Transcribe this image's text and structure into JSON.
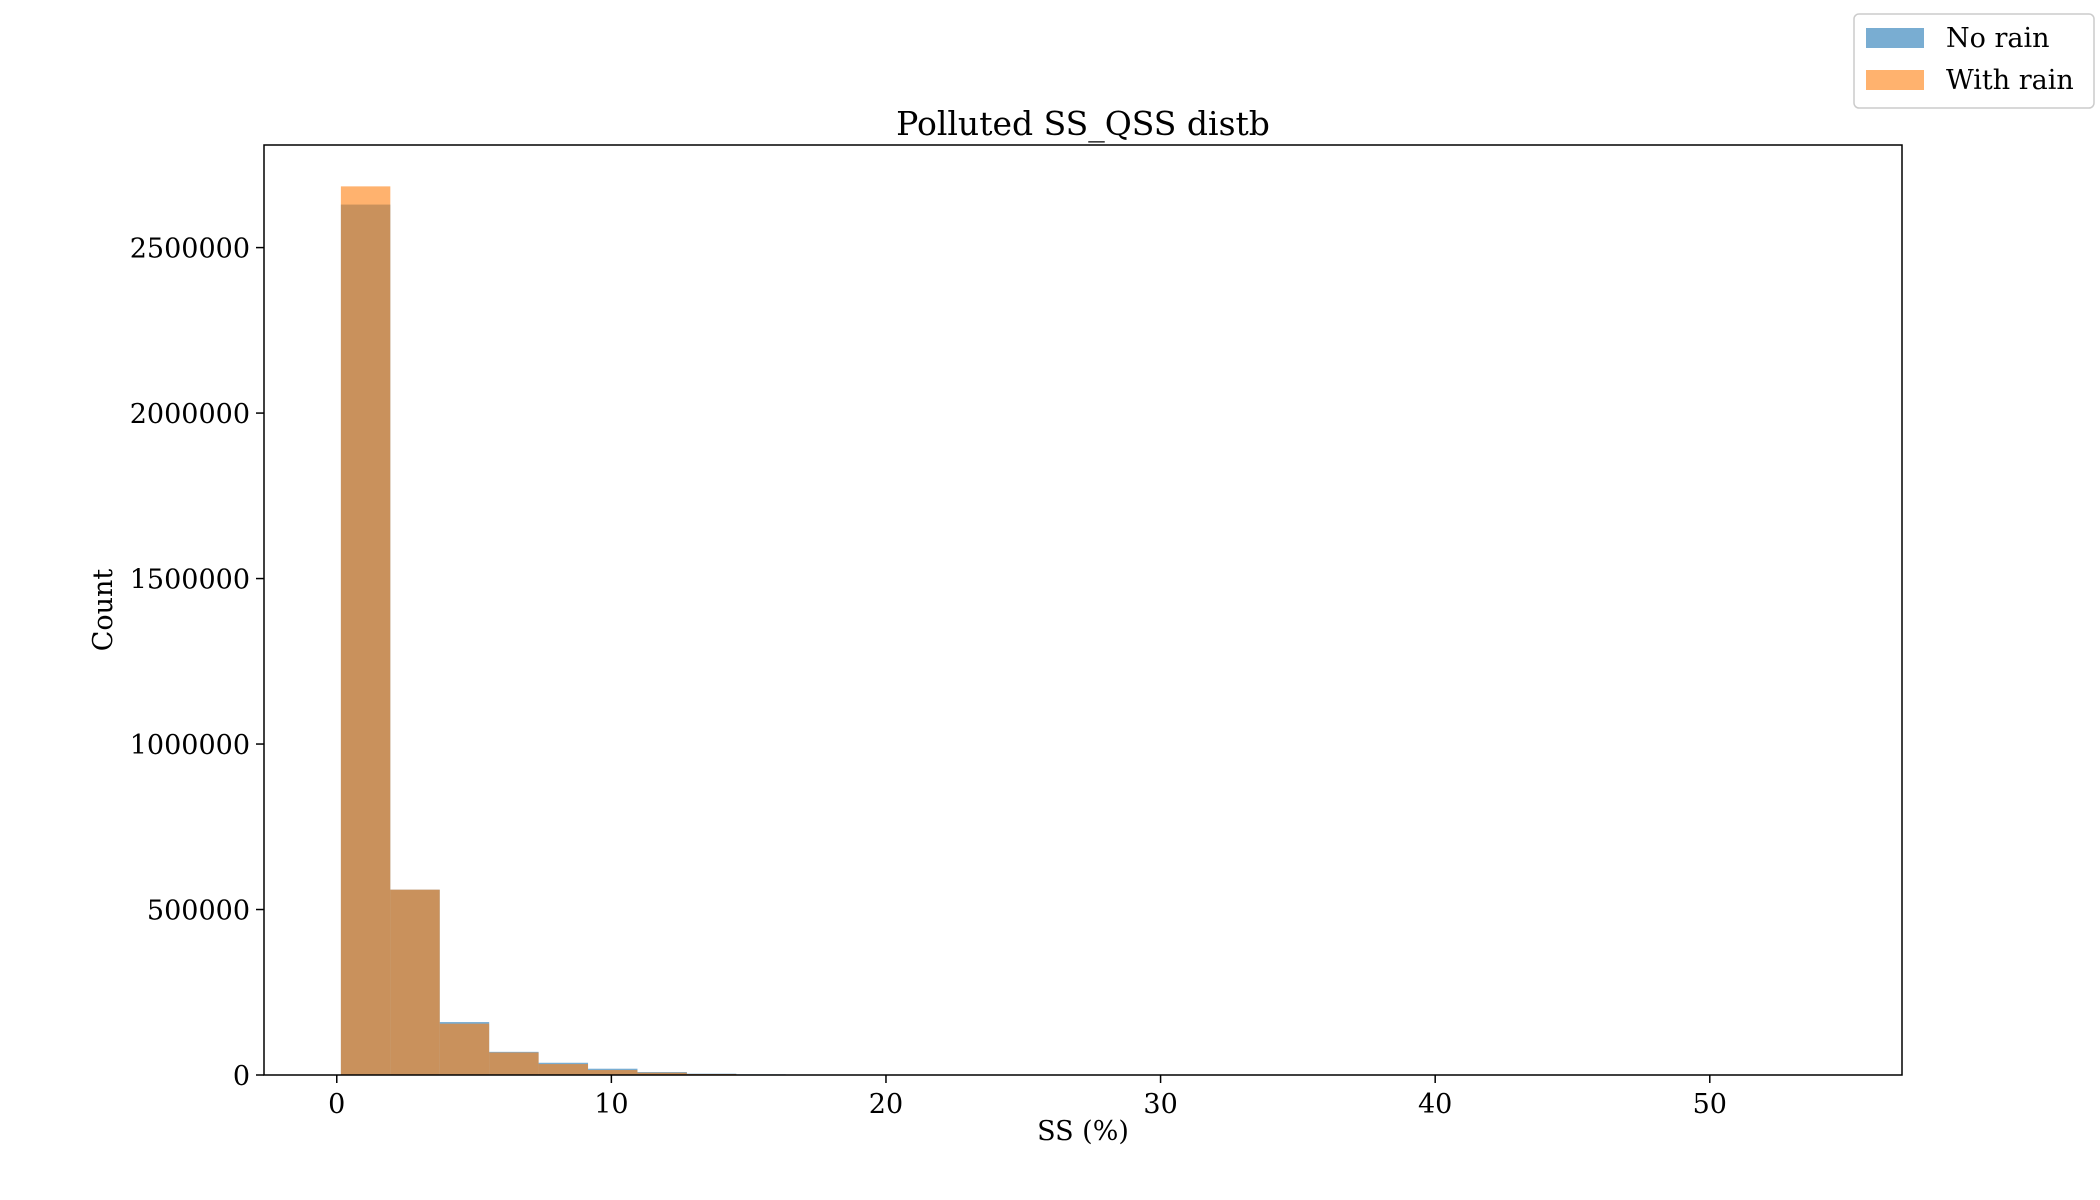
{
  "chart_data": {
    "type": "bar",
    "title": "Polluted SS_QSS distb",
    "xlabel": "SS (%)",
    "ylabel": "Count",
    "xlim": [
      -2.65,
      57.0
    ],
    "ylim": [
      0,
      2810000
    ],
    "xticks": [
      0,
      10,
      20,
      30,
      40,
      50
    ],
    "yticks": [
      0,
      500000,
      1000000,
      1500000,
      2000000,
      2500000
    ],
    "bin_edges": [
      0.15,
      1.95,
      3.75,
      5.55,
      7.35,
      9.15,
      10.95,
      12.75,
      14.55,
      16.35,
      18.15
    ],
    "series": [
      {
        "name": "No rain",
        "color": "#1f77b4",
        "opacity": 0.6,
        "values": [
          2630000,
          560000,
          160000,
          70000,
          37000,
          19000,
          9000,
          4000,
          2000,
          1000
        ]
      },
      {
        "name": "With rain",
        "color": "#ff7f0e",
        "opacity": 0.6,
        "values": [
          2685000,
          560000,
          155000,
          68000,
          33000,
          15000,
          7000,
          3000,
          1500,
          800
        ]
      }
    ],
    "legend": {
      "position": "top-right"
    },
    "grid": false
  }
}
